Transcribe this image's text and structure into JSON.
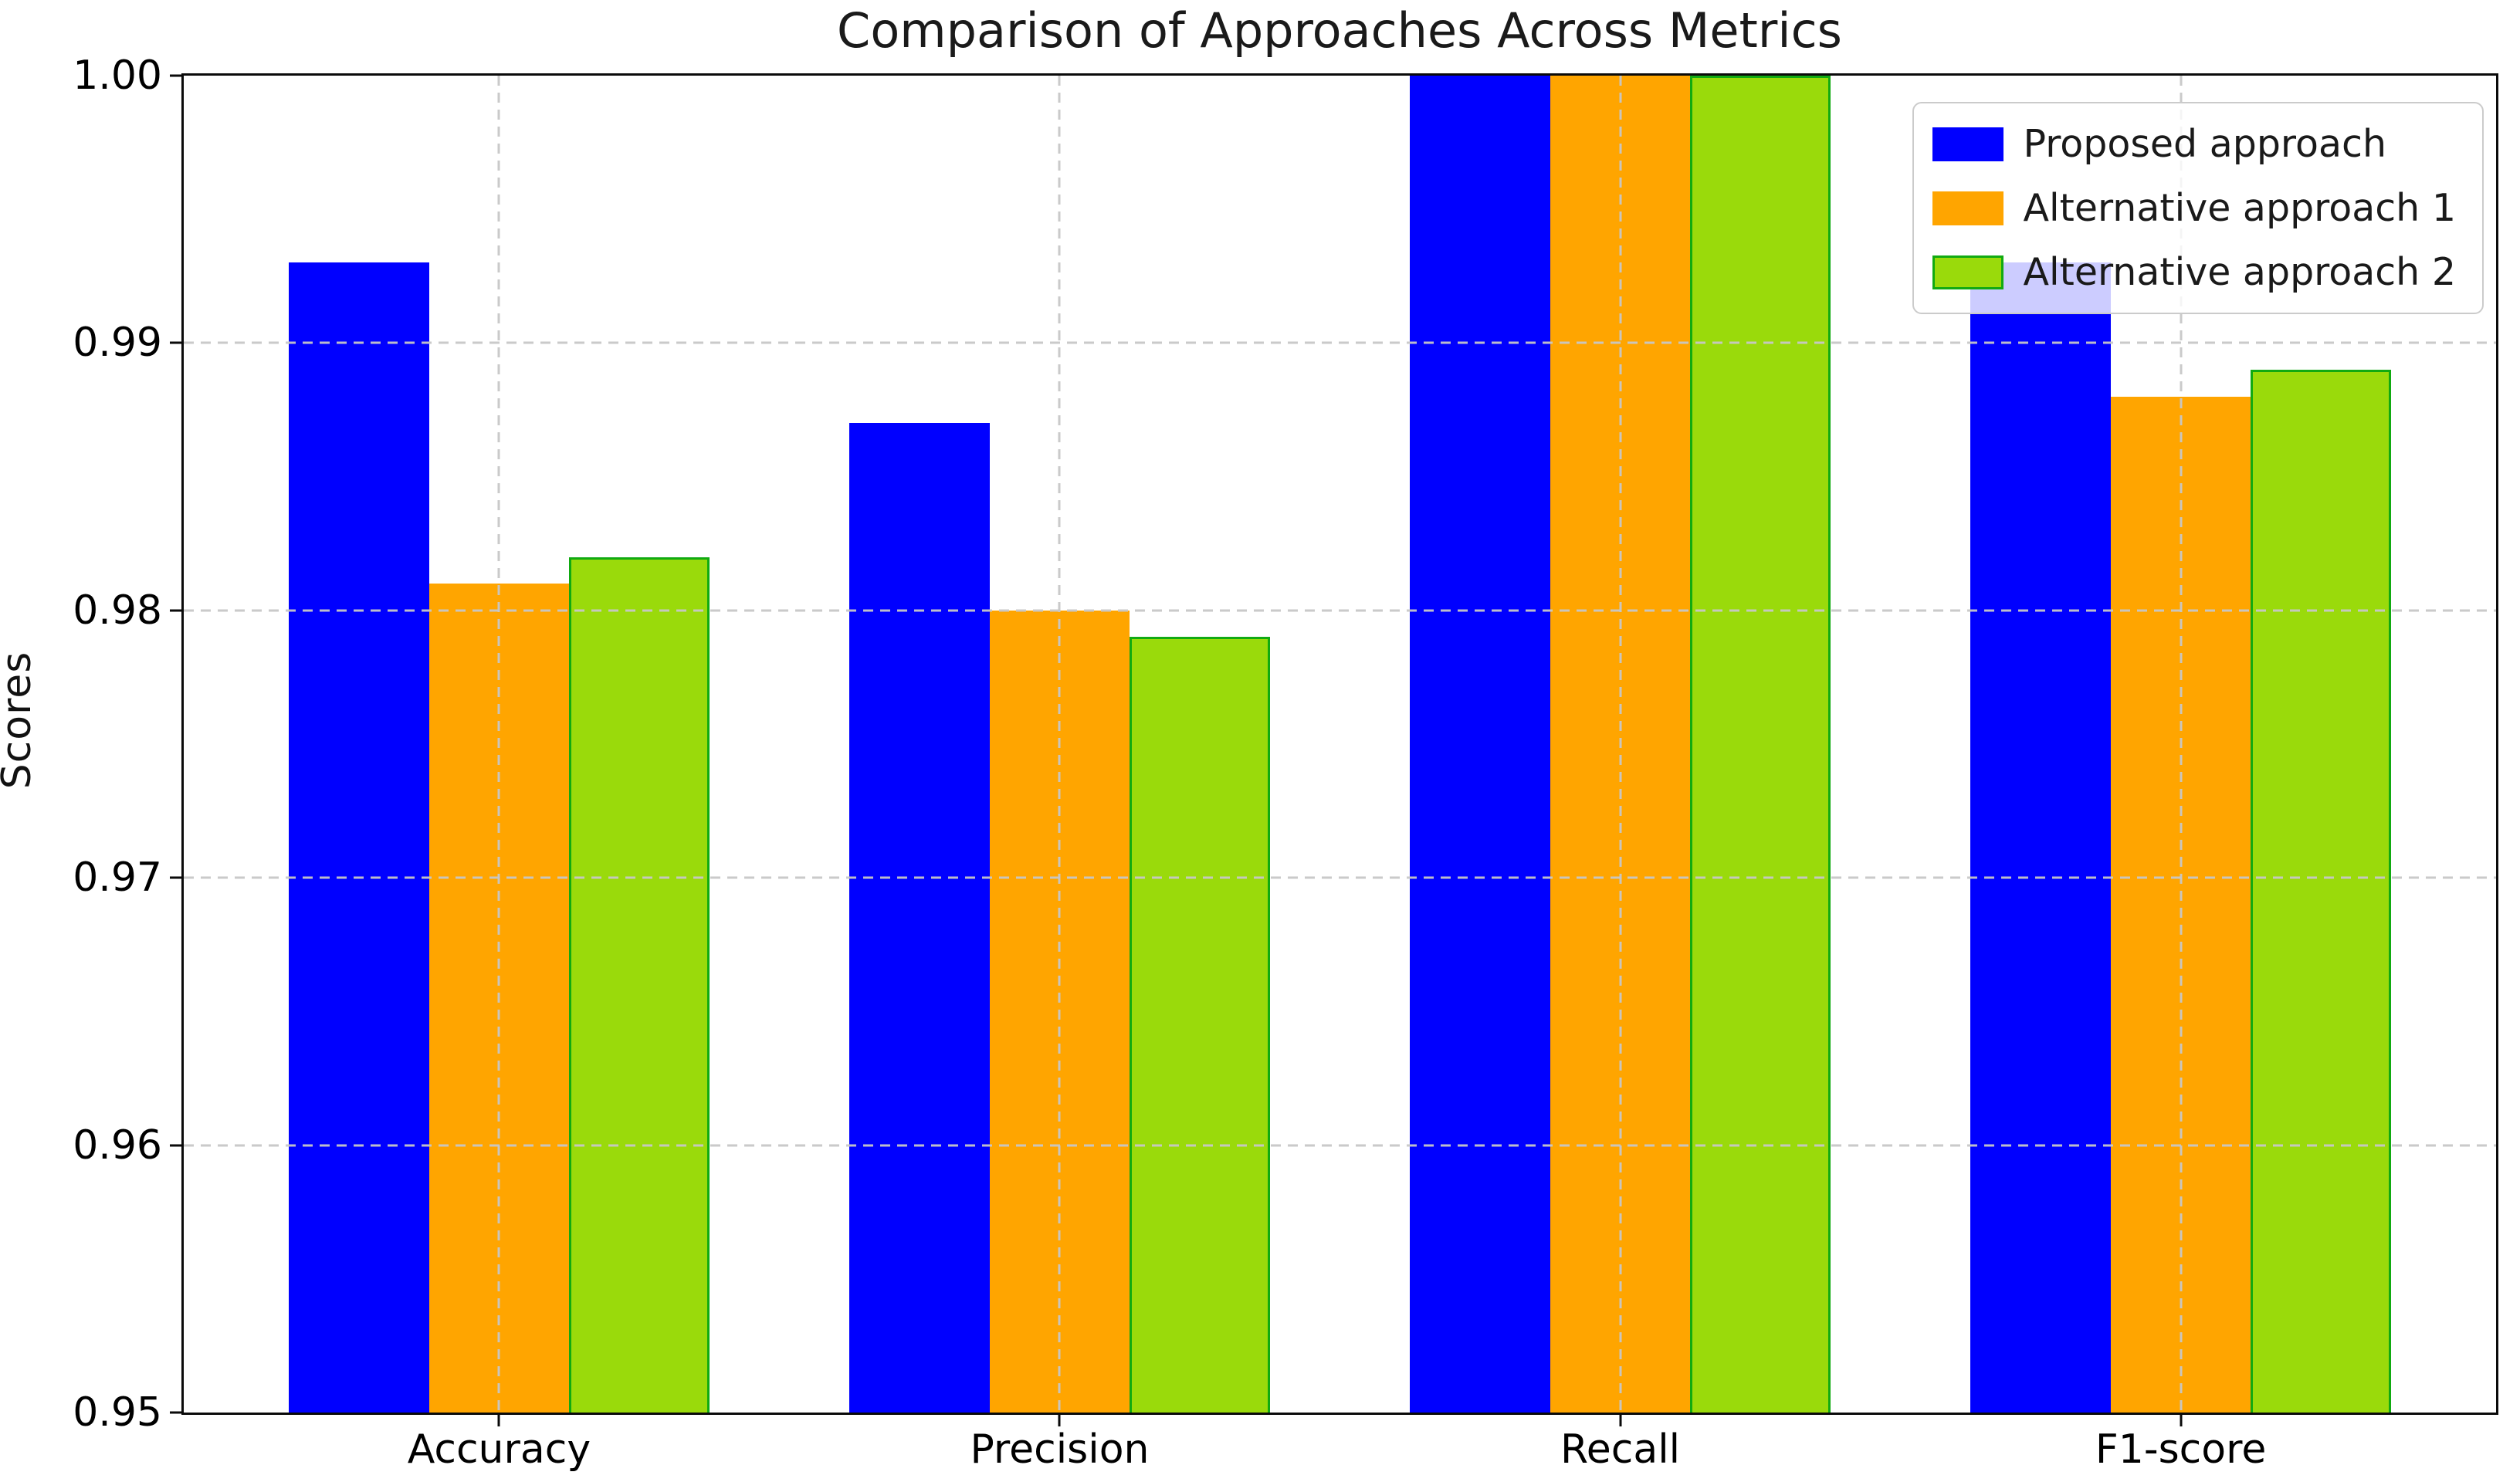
{
  "figure": {
    "background": "#ffffff",
    "plot_border_color": "#0a0a0a",
    "grid_color": "#c7c7c7"
  },
  "chart_data": {
    "type": "bar",
    "title": "Comparison of Approaches Across Metrics",
    "xlabel": "",
    "ylabel": "Scores",
    "categories": [
      "Accuracy",
      "Precision",
      "Recall",
      "F1-score"
    ],
    "series": [
      {
        "name": "Proposed approach",
        "color": "#0000ff",
        "edge_color": "#0000ff",
        "values": [
          0.993,
          0.987,
          1.0,
          0.993
        ]
      },
      {
        "name": "Alternative approach 1",
        "color": "#ffa500",
        "edge_color": "#ffa500",
        "values": [
          0.981,
          0.98,
          1.0,
          0.988
        ]
      },
      {
        "name": "Alternative approach 2",
        "color": "#9ada0b",
        "edge_color": "#11aa11",
        "values": [
          0.982,
          0.979,
          1.0,
          0.989
        ]
      }
    ],
    "ylim": [
      0.95,
      1.0
    ],
    "yticks": [
      "1.00",
      "0.99",
      "0.98",
      "0.97",
      "0.96",
      "0.95"
    ],
    "grid": "dashed, drawn above bars, horizontal and vertical",
    "legend_position": "upper right",
    "bar_width_units": 0.25,
    "x_axis_units": {
      "min": -0.5625,
      "max": 3.5625
    }
  }
}
